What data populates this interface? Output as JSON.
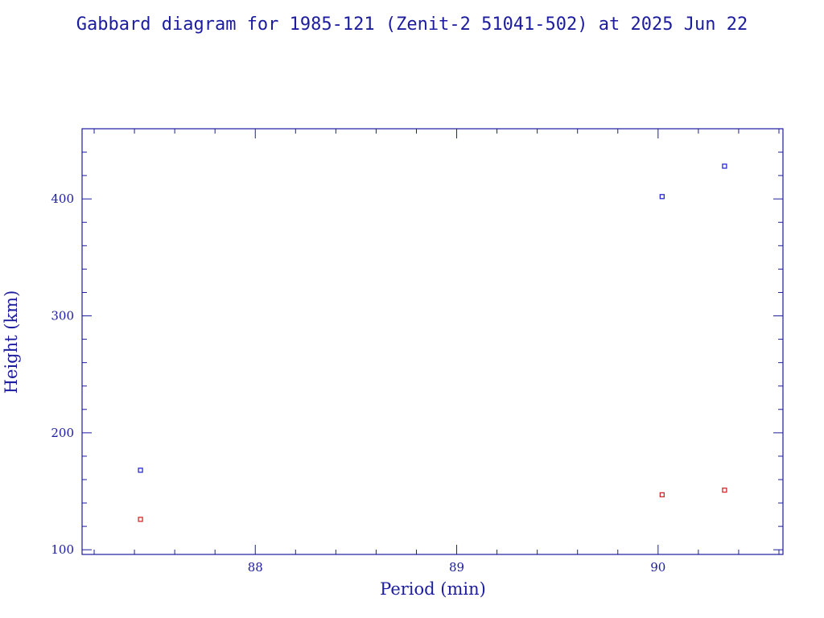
{
  "chart_data": {
    "type": "scatter",
    "title": "Gabbard diagram for 1985-121 (Zenit-2 51041-502) at 2025 Jun 22",
    "xlabel": "Period (min)",
    "ylabel": "Height (km)",
    "xlim": [
      87.14,
      90.62
    ],
    "ylim": [
      96,
      460
    ],
    "x_ticks": [
      88,
      89,
      90
    ],
    "x_tick_labels": [
      "88",
      "89",
      "90"
    ],
    "y_ticks": [
      100,
      200,
      300,
      400
    ],
    "y_tick_labels": [
      "100",
      "200",
      "300",
      "400"
    ],
    "grid": false,
    "legend": "none",
    "series": [
      {
        "color": "#2a2ad2",
        "x": [
          87.43,
          90.02,
          90.33
        ],
        "y": [
          168,
          402,
          428
        ]
      },
      {
        "color": "#d22a2a",
        "x": [
          87.43,
          90.02,
          90.33
        ],
        "y": [
          126,
          147,
          151
        ]
      }
    ]
  },
  "colors": {
    "axis": "#1c1c9e",
    "text": "#1c1c9e"
  }
}
